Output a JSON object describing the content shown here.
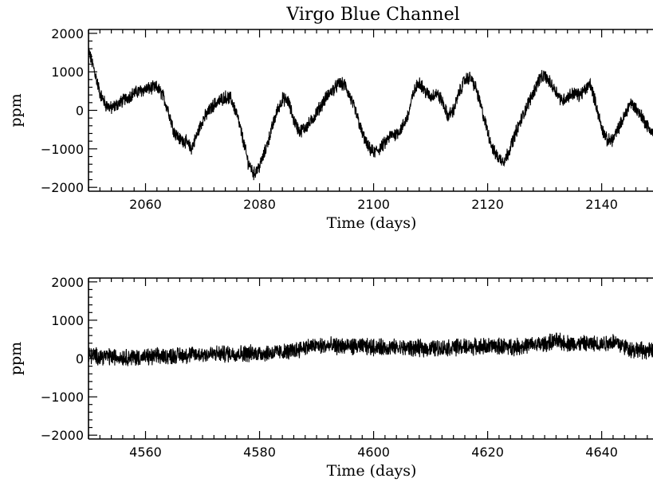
{
  "chart_data": [
    {
      "type": "line",
      "title": "Virgo Blue Channel",
      "xlabel": "Time (days)",
      "ylabel": "ppm",
      "xlim": [
        2050,
        2149
      ],
      "ylim": [
        -2100,
        2100
      ],
      "xticks": [
        2060,
        2080,
        2100,
        2120,
        2140
      ],
      "yticks": [
        -2000,
        -1000,
        0,
        1000,
        2000
      ],
      "series": [
        {
          "noise_amplitude_ppm": 150,
          "x": [
            2050,
            2051,
            2052,
            2053,
            2054,
            2056,
            2058,
            2060,
            2062,
            2063,
            2064,
            2065,
            2066,
            2067,
            2068,
            2069,
            2070,
            2072,
            2074,
            2075,
            2076,
            2077,
            2078,
            2079,
            2080,
            2081,
            2082,
            2083,
            2084,
            2085,
            2086,
            2087,
            2088,
            2089,
            2090,
            2092,
            2094,
            2095,
            2096,
            2097,
            2098,
            2099,
            2100,
            2101,
            2102,
            2103,
            2104,
            2105,
            2106,
            2107,
            2108,
            2109,
            2110,
            2111,
            2112,
            2113,
            2114,
            2115,
            2116,
            2117,
            2118,
            2119,
            2120,
            2121,
            2122,
            2123,
            2124,
            2125,
            2126,
            2127,
            2128,
            2129,
            2130,
            2131,
            2132,
            2133,
            2134,
            2135,
            2136,
            2137,
            2138,
            2139,
            2140,
            2141,
            2142,
            2143,
            2144,
            2145,
            2146,
            2147,
            2148,
            2149
          ],
          "y": [
            1550,
            1050,
            450,
            150,
            50,
            250,
            450,
            550,
            600,
            400,
            0,
            -550,
            -750,
            -800,
            -1000,
            -650,
            -250,
            150,
            350,
            300,
            -100,
            -700,
            -1350,
            -1650,
            -1450,
            -1050,
            -550,
            -50,
            300,
            250,
            -250,
            -550,
            -450,
            -300,
            -50,
            400,
            700,
            650,
            300,
            -100,
            -600,
            -950,
            -1100,
            -1000,
            -850,
            -650,
            -600,
            -450,
            -150,
            450,
            750,
            500,
            350,
            450,
            250,
            -150,
            0,
            450,
            800,
            850,
            550,
            0,
            -550,
            -1050,
            -1250,
            -1300,
            -950,
            -550,
            -200,
            150,
            450,
            800,
            900,
            700,
            500,
            250,
            350,
            450,
            400,
            500,
            700,
            150,
            -450,
            -800,
            -750,
            -450,
            -150,
            200,
            50,
            -150,
            -400,
            -600
          ]
        }
      ]
    },
    {
      "type": "line",
      "title": "",
      "xlabel": "Time (days)",
      "ylabel": "ppm",
      "xlim": [
        4550,
        4649
      ],
      "ylim": [
        -2100,
        2100
      ],
      "xticks": [
        4560,
        4580,
        4600,
        4620,
        4640
      ],
      "yticks": [
        -2000,
        -1000,
        0,
        1000,
        2000
      ],
      "series": [
        {
          "noise_amplitude_ppm": 190,
          "x": [
            4550,
            4555,
            4560,
            4565,
            4570,
            4575,
            4580,
            4585,
            4588,
            4590,
            4595,
            4600,
            4605,
            4610,
            4615,
            4620,
            4625,
            4630,
            4632,
            4635,
            4640,
            4642,
            4645,
            4649
          ],
          "y": [
            80,
            40,
            30,
            80,
            110,
            130,
            140,
            170,
            300,
            330,
            320,
            300,
            280,
            260,
            300,
            320,
            310,
            380,
            450,
            380,
            380,
            450,
            250,
            180
          ]
        }
      ]
    }
  ]
}
